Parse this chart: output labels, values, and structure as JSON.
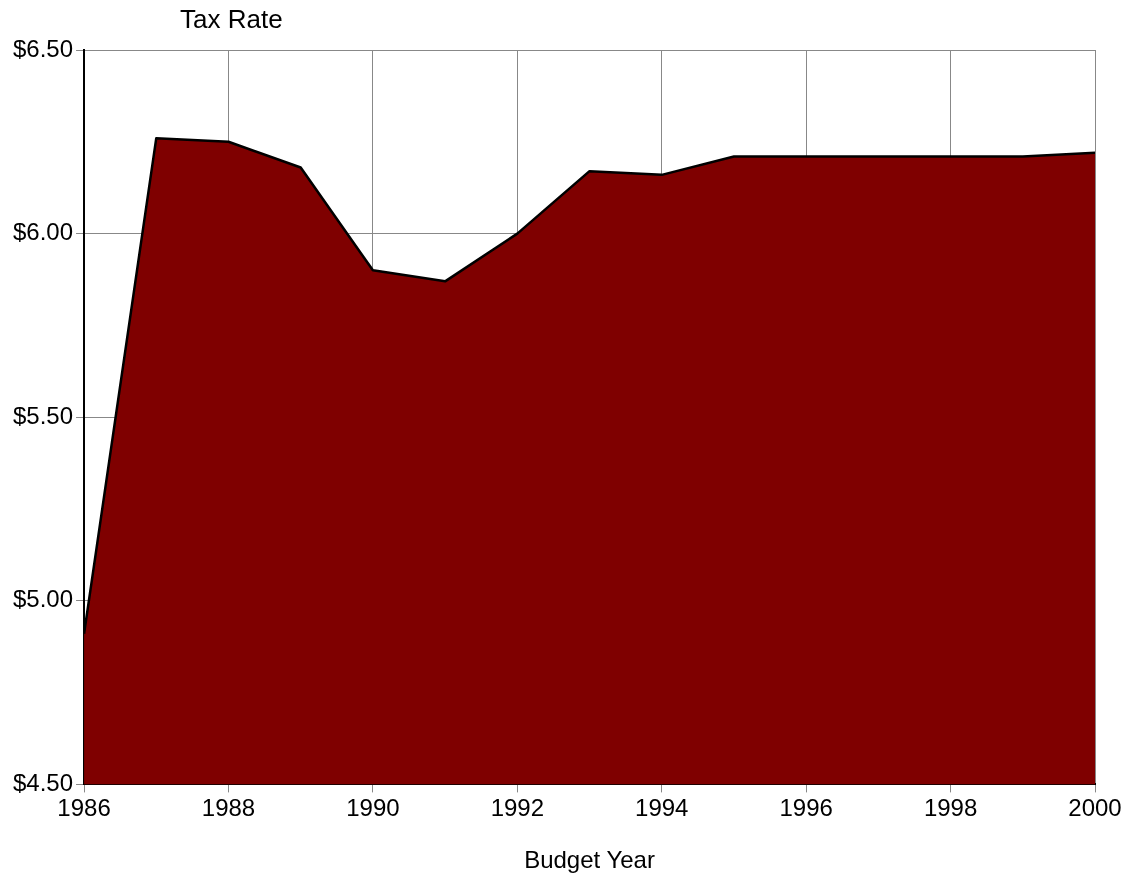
{
  "chart_data": {
    "type": "area",
    "ylabel": "Tax Rate",
    "xlabel": "Budget Year",
    "x": [
      1986,
      1987,
      1988,
      1989,
      1990,
      1991,
      1992,
      1993,
      1994,
      1995,
      1996,
      1997,
      1998,
      1999,
      2000
    ],
    "series": [
      {
        "color": "#7f0000",
        "values": [
          4.91,
          6.26,
          6.25,
          6.18,
          5.9,
          5.87,
          6.0,
          6.17,
          6.16,
          6.21,
          6.21,
          6.21,
          6.21,
          6.21,
          6.22
        ]
      }
    ],
    "xlim": [
      1986,
      2000
    ],
    "xticks": [
      1986,
      1988,
      1990,
      1992,
      1994,
      1996,
      1998,
      2000
    ],
    "ylim": [
      4.5,
      6.5
    ],
    "yticks": [
      {
        "value": 4.5,
        "label": "$4.50"
      },
      {
        "value": 5,
        "label": "$5.00"
      },
      {
        "value": 5.5,
        "label": "$5.50"
      },
      {
        "value": 6,
        "label": "$6.00"
      },
      {
        "value": 6.5,
        "label": "$6.50"
      }
    ],
    "grid": true,
    "legend": false
  }
}
